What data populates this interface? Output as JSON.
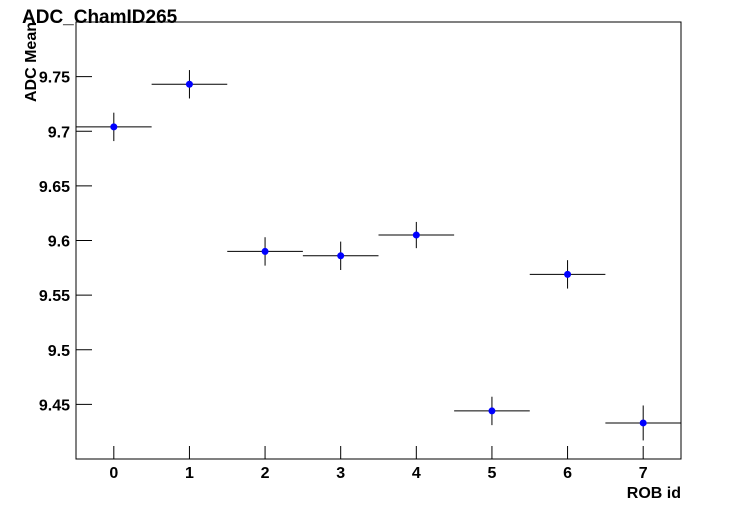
{
  "chart_data": {
    "type": "errorbar",
    "title": "ADC_ChamID265",
    "x_label": "ROB id",
    "y_label": "ADC Mean",
    "x": [
      0,
      1,
      2,
      3,
      4,
      5,
      6,
      7
    ],
    "values": [
      9.704,
      9.743,
      9.59,
      9.586,
      9.605,
      9.444,
      9.569,
      9.433
    ],
    "errors": [
      0.013,
      0.013,
      0.013,
      0.013,
      0.012,
      0.013,
      0.013,
      0.016
    ],
    "xerrors": [
      0.5,
      0.5,
      0.5,
      0.5,
      0.5,
      0.5,
      0.5,
      0.5
    ],
    "color": "#0000ff",
    "xlim": [
      -0.5,
      7.5
    ],
    "xticks": [
      0,
      1,
      2,
      3,
      4,
      5,
      6,
      7
    ],
    "ylim": [
      9.4,
      9.8
    ],
    "yticks": [
      9.45,
      9.5,
      9.55,
      9.6,
      9.65,
      9.7,
      9.75
    ]
  }
}
